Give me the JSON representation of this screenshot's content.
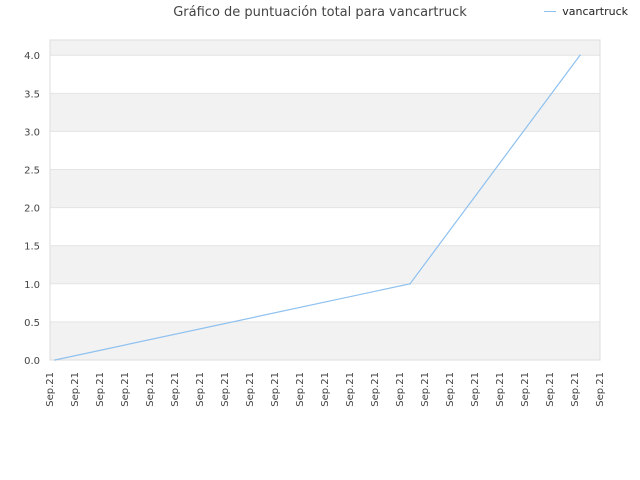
{
  "chart_data": {
    "type": "line",
    "title": "Gráfico de puntuación total para vancartruck",
    "xlabel": "",
    "ylabel": "",
    "ylim": [
      0,
      4.2
    ],
    "yticks": [
      0.0,
      0.5,
      1.0,
      1.5,
      2.0,
      2.5,
      3.0,
      3.5,
      4.0
    ],
    "ytick_labels": [
      "0.0",
      "0.5",
      "1.0",
      "1.5",
      "2.0",
      "2.5",
      "3.0",
      "3.5",
      "4.0"
    ],
    "categories": [
      "Sep.21",
      "Sep.21",
      "Sep.21",
      "Sep.21",
      "Sep.21",
      "Sep.21",
      "Sep.21",
      "Sep.21",
      "Sep.21",
      "Sep.21",
      "Sep.21",
      "Sep.21",
      "Sep.21",
      "Sep.21",
      "Sep.21",
      "Sep.21",
      "Sep.21",
      "Sep.21",
      "Sep.21",
      "Sep.21",
      "Sep.21",
      "Sep.21",
      "Sep.21"
    ],
    "series": [
      {
        "name": "vancartruck",
        "color": "#8ec1f0",
        "points": [
          {
            "x": 0,
            "y": 0.0
          },
          {
            "x": 14.2,
            "y": 1.0
          },
          {
            "x": 21,
            "y": 4.0
          }
        ]
      }
    ],
    "grid": true,
    "alternating_bands": true,
    "band_color": "#f2f2f2",
    "legend_position": "top-right"
  }
}
